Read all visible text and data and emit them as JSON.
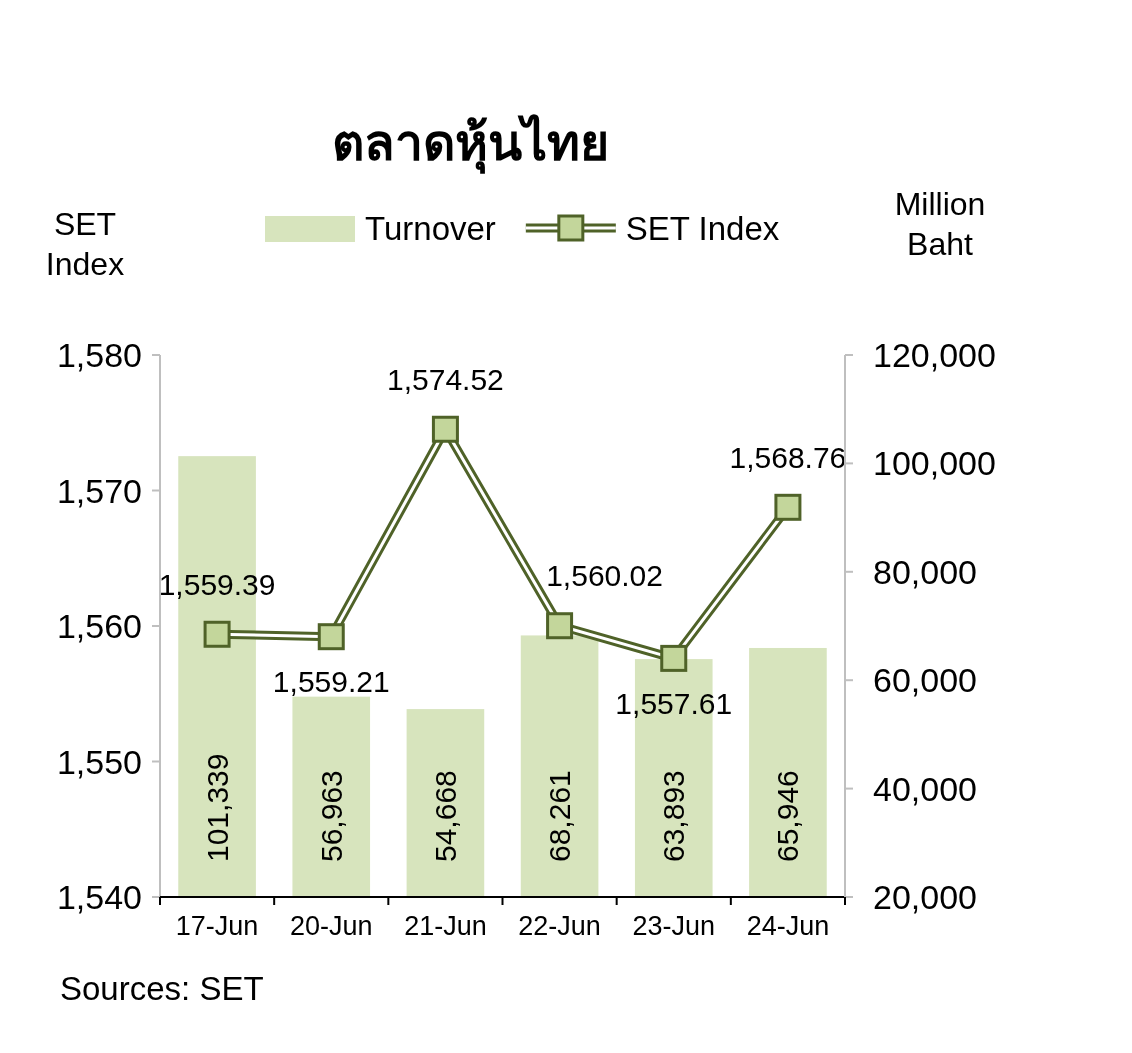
{
  "chart_data": {
    "type": "bar",
    "title": "ตลาดหุ้นไทย",
    "ylabel": "SET Index",
    "y2label": "Million Baht",
    "categories": [
      "17-Jun",
      "20-Jun",
      "21-Jun",
      "22-Jun",
      "23-Jun",
      "24-Jun"
    ],
    "series": [
      {
        "name": "Turnover",
        "axis": "y2",
        "color": "#d7e4bd",
        "values": [
          101339,
          56963,
          54668,
          68261,
          63893,
          65946
        ],
        "value_labels": [
          "101,339",
          "56,963",
          "54,668",
          "68,261",
          "63,893",
          "65,946"
        ]
      },
      {
        "name": "SET Index",
        "type": "line",
        "color": "#4f6228",
        "values": [
          1559.39,
          1559.21,
          1574.52,
          1560.02,
          1557.61,
          1568.76
        ],
        "value_labels": [
          "1,559.39",
          "1,559.21",
          "1,574.52",
          "1,560.02",
          "1,557.61",
          "1,568.76"
        ]
      }
    ],
    "ylim": [
      1540,
      1580
    ],
    "yticks": [
      {
        "value": 1540,
        "label": "1,540"
      },
      {
        "value": 1550,
        "label": "1,550"
      },
      {
        "value": 1560,
        "label": "1,560"
      },
      {
        "value": 1570,
        "label": "1,570"
      },
      {
        "value": 1580,
        "label": "1,580"
      }
    ],
    "y2lim": [
      20000,
      120000
    ],
    "y2ticks": [
      {
        "value": 20000,
        "label": "20,000"
      },
      {
        "value": 40000,
        "label": "40,000"
      },
      {
        "value": 60000,
        "label": "60,000"
      },
      {
        "value": 80000,
        "label": "80,000"
      },
      {
        "value": 100000,
        "label": "100,000"
      },
      {
        "value": 120000,
        "label": "120,000"
      }
    ],
    "legend": "top",
    "marker": "square",
    "grid": false,
    "annotations": [
      "Sources: SET"
    ]
  }
}
